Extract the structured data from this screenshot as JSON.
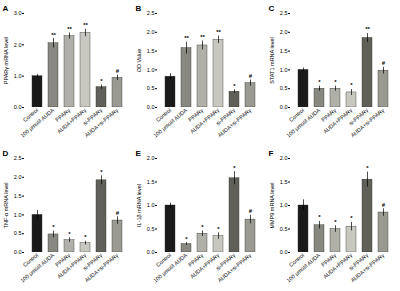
{
  "chart_data": [
    {
      "type": "bar",
      "title": "A",
      "ylabel": "PPARγ mRNA level",
      "categories": [
        "Control",
        "100 μmol/l AUDA",
        "PPARγ",
        "AUDA+PPARγ",
        "si-PPARγ",
        "AUDA+si-PPARγ"
      ],
      "values": [
        1.0,
        2.05,
        2.28,
        2.38,
        0.65,
        0.95
      ],
      "errors": [
        0.05,
        0.15,
        0.1,
        0.12,
        0.07,
        0.09
      ],
      "annotations": [
        null,
        "**",
        "**",
        "**",
        "*",
        "#"
      ],
      "colors": [
        "#1a1a1a",
        "#888880",
        "#b0b0a8",
        "#c8c8c0",
        "#606058",
        "#9a9a92"
      ],
      "ylim": [
        0,
        3.0
      ],
      "yticks": [
        {
          "value": 0,
          "label": "0.0"
        },
        {
          "value": 1,
          "label": "1.0"
        },
        {
          "value": 2,
          "label": "2.0"
        },
        {
          "value": 3,
          "label": "3.0"
        }
      ]
    },
    {
      "type": "bar",
      "title": "B",
      "ylabel": "OD Value",
      "categories": [
        "Control",
        "100 μmol/l AUDA",
        "PPARγ",
        "AUDA+PPARγ",
        "si-PPARγ",
        "AUDA+si-PPARγ"
      ],
      "values": [
        0.82,
        1.58,
        1.65,
        1.8,
        0.42,
        0.65
      ],
      "errors": [
        0.08,
        0.16,
        0.12,
        0.1,
        0.05,
        0.08
      ],
      "annotations": [
        null,
        "**",
        "**",
        "**",
        "*",
        "#"
      ],
      "colors": [
        "#1a1a1a",
        "#888880",
        "#b0b0a8",
        "#c8c8c0",
        "#606058",
        "#9a9a92"
      ],
      "ylim": [
        0,
        2.5
      ],
      "yticks": [
        {
          "value": 0,
          "label": "0.0"
        },
        0.5,
        {
          "value": 1,
          "label": "1.0"
        },
        1.5,
        {
          "value": 2,
          "label": "2.0"
        },
        2.5
      ]
    },
    {
      "type": "bar",
      "title": "C",
      "ylabel": "STAT1 mRNA level",
      "categories": [
        "Control",
        "100 μmol/l AUDA",
        "PPARγ",
        "AUDA+PPARγ",
        "si-PPARγ",
        "AUDA+si-PPARγ"
      ],
      "values": [
        1.0,
        0.5,
        0.5,
        0.4,
        1.85,
        0.98
      ],
      "errors": [
        0.05,
        0.07,
        0.07,
        0.08,
        0.12,
        0.09
      ],
      "annotations": [
        null,
        "*",
        "*",
        "*",
        "**",
        "#"
      ],
      "colors": [
        "#1a1a1a",
        "#888880",
        "#b0b0a8",
        "#c8c8c0",
        "#606058",
        "#9a9a92"
      ],
      "ylim": [
        0,
        2.5
      ],
      "yticks": [
        {
          "value": 0,
          "label": "0.0"
        },
        0.5,
        {
          "value": 1,
          "label": "1.0"
        },
        1.5,
        {
          "value": 2,
          "label": "2.0"
        },
        2.5
      ]
    },
    {
      "type": "bar",
      "title": "D",
      "ylabel": "TNF-α mRNA level",
      "categories": [
        "Control",
        "100 μmol/l AUDA",
        "PPARγ",
        "AUDA+PPARγ",
        "si-PPARγ",
        "AUDA+si-PPARγ"
      ],
      "values": [
        1.0,
        0.48,
        0.33,
        0.25,
        1.92,
        0.85
      ],
      "errors": [
        0.12,
        0.09,
        0.06,
        0.05,
        0.12,
        0.1
      ],
      "annotations": [
        null,
        "*",
        "*",
        "*",
        "*",
        "#"
      ],
      "colors": [
        "#1a1a1a",
        "#888880",
        "#b0b0a8",
        "#c8c8c0",
        "#606058",
        "#9a9a92"
      ],
      "ylim": [
        0,
        2.5
      ],
      "yticks": [
        {
          "value": 0,
          "label": "0.0"
        },
        0.5,
        {
          "value": 1,
          "label": "1.0"
        },
        1.5,
        {
          "value": 2,
          "label": "2.0"
        },
        2.5
      ]
    },
    {
      "type": "bar",
      "title": "E",
      "ylabel": "IL-1β mRNA level",
      "categories": [
        "Control",
        "100 μmol/l AUDA",
        "PPARγ",
        "AUDA+PPARγ",
        "si-PPARγ",
        "AUDA+si-PPARγ"
      ],
      "values": [
        1.0,
        0.18,
        0.4,
        0.35,
        1.58,
        0.7
      ],
      "errors": [
        0.05,
        0.03,
        0.06,
        0.07,
        0.14,
        0.09
      ],
      "annotations": [
        null,
        "*",
        "*",
        "*",
        "*",
        "#"
      ],
      "colors": [
        "#1a1a1a",
        "#888880",
        "#b0b0a8",
        "#c8c8c0",
        "#606058",
        "#9a9a92"
      ],
      "ylim": [
        0,
        2.0
      ],
      "yticks": [
        {
          "value": 0,
          "label": "0.0"
        },
        0.5,
        {
          "value": 1,
          "label": "1.0"
        },
        1.5,
        {
          "value": 2,
          "label": "2.0"
        }
      ]
    },
    {
      "type": "bar",
      "title": "F",
      "ylabel": "MMP9 mRNA level",
      "categories": [
        "Control",
        "100 μmol/l AUDA",
        "PPARγ",
        "AUDA+PPARγ",
        "si-PPARγ",
        "AUDA+si-PPARγ"
      ],
      "values": [
        1.0,
        0.58,
        0.5,
        0.55,
        1.55,
        0.85
      ],
      "errors": [
        0.12,
        0.08,
        0.07,
        0.09,
        0.16,
        0.08
      ],
      "annotations": [
        null,
        "*",
        "*",
        "*",
        "*",
        "#"
      ],
      "colors": [
        "#1a1a1a",
        "#888880",
        "#b0b0a8",
        "#c8c8c0",
        "#606058",
        "#9a9a92"
      ],
      "ylim": [
        0,
        2.0
      ],
      "yticks": [
        {
          "value": 0,
          "label": "0.0"
        },
        0.5,
        {
          "value": 1,
          "label": "1.0"
        },
        1.5,
        {
          "value": 2,
          "label": "2.0"
        }
      ]
    }
  ]
}
